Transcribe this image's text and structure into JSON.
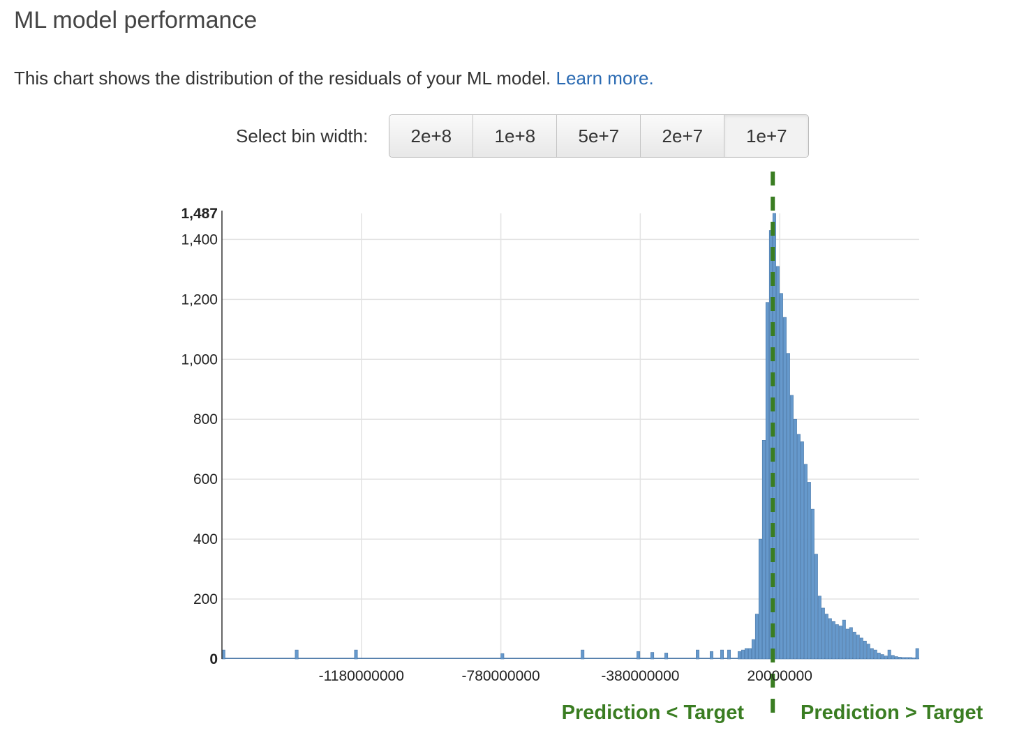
{
  "header": {
    "title": "ML model performance",
    "description": "This chart shows the distribution of the residuals of your ML model.",
    "learn_more": "Learn more."
  },
  "bin_selector": {
    "label": "Select bin width:",
    "options": [
      "2e+8",
      "1e+8",
      "5e+7",
      "2e+7",
      "1e+7"
    ],
    "selected": "1e+7"
  },
  "colors": {
    "bar": "#6699cc",
    "bar_stroke": "#4a78a8",
    "marker": "#3a7d22",
    "grid": "#e3e3e3"
  },
  "annotations": {
    "left": "Prediction < Target",
    "right": "Prediction > Target"
  },
  "chart_data": {
    "type": "bar",
    "title": "",
    "xlabel": "",
    "ylabel": "",
    "bin_width": 10000000,
    "xlim": [
      -1580000000,
      420000000
    ],
    "ylim": [
      0,
      1487
    ],
    "x_ticks": [
      -1180000000,
      -780000000,
      -380000000,
      20000000
    ],
    "x_tick_labels": [
      "-1180000000",
      "-780000000",
      "-380000000",
      "20000000"
    ],
    "y_ticks": [
      0,
      200,
      400,
      600,
      800,
      1000,
      1200,
      1400,
      1487
    ],
    "y_tick_labels": [
      "0",
      "200",
      "400",
      "600",
      "800",
      "1,000",
      "1,200",
      "1,400",
      "1,487"
    ],
    "grid": true,
    "reference_line_x": 0,
    "bin_starts": [
      -1580000000,
      -1370000000,
      -1200000000,
      -780000000,
      -550000000,
      -390000000,
      -350000000,
      -310000000,
      -220000000,
      -180000000,
      -150000000,
      -130000000,
      -100000000,
      -90000000,
      -80000000,
      -70000000,
      -60000000,
      -50000000,
      -40000000,
      -30000000,
      -20000000,
      -10000000,
      0,
      10000000,
      20000000,
      30000000,
      40000000,
      50000000,
      60000000,
      70000000,
      80000000,
      90000000,
      100000000,
      110000000,
      120000000,
      130000000,
      140000000,
      150000000,
      160000000,
      170000000,
      180000000,
      190000000,
      200000000,
      210000000,
      220000000,
      230000000,
      240000000,
      250000000,
      260000000,
      270000000,
      280000000,
      290000000,
      300000000,
      310000000,
      320000000,
      330000000,
      340000000,
      350000000,
      360000000,
      370000000,
      380000000,
      390000000,
      400000000,
      410000000
    ],
    "values": [
      30,
      30,
      30,
      18,
      30,
      25,
      22,
      20,
      30,
      25,
      30,
      30,
      25,
      30,
      35,
      35,
      65,
      150,
      400,
      730,
      1190,
      1430,
      1487,
      1310,
      1220,
      1140,
      1020,
      880,
      800,
      750,
      725,
      650,
      590,
      500,
      350,
      210,
      170,
      150,
      135,
      125,
      115,
      110,
      130,
      100,
      105,
      90,
      80,
      70,
      60,
      50,
      35,
      30,
      20,
      15,
      10,
      30,
      12,
      8,
      6,
      5,
      5,
      5,
      4,
      35
    ]
  }
}
